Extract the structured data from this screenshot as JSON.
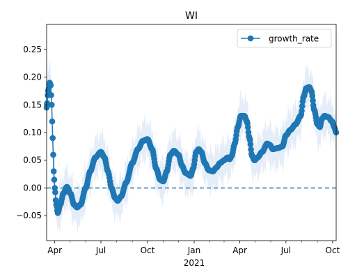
{
  "chart_data": {
    "type": "line",
    "title": "WI",
    "xlabel": "",
    "ylabel": "",
    "x_range": [
      "2020-03-16",
      "2021-10-08"
    ],
    "ylim": [
      -0.095,
      0.295
    ],
    "y_ticks": [
      -0.05,
      0.0,
      0.05,
      0.1,
      0.15,
      0.2,
      0.25
    ],
    "y_tick_labels": [
      "−0.05",
      "0.00",
      "0.05",
      "0.10",
      "0.15",
      "0.20",
      "0.25"
    ],
    "x_ticks": [
      {
        "date": "2020-04-01",
        "label": "Apr"
      },
      {
        "date": "2020-07-01",
        "label": "Jul"
      },
      {
        "date": "2020-10-01",
        "label": "Oct"
      },
      {
        "date": "2021-01-01",
        "label": "Jan"
      },
      {
        "date": "2021-04-01",
        "label": "Apr"
      },
      {
        "date": "2021-07-01",
        "label": "Jul"
      },
      {
        "date": "2021-10-01",
        "label": "Oct"
      }
    ],
    "x_minor_ticks": [
      "2020-05-01",
      "2020-06-01",
      "2020-08-01",
      "2020-09-01",
      "2020-11-01",
      "2020-12-01",
      "2021-02-01",
      "2021-03-01",
      "2021-05-01",
      "2021-06-01",
      "2021-08-01",
      "2021-09-01"
    ],
    "x_secondary_label": "2021",
    "reference_line": {
      "y": 0.0,
      "style": "dashed"
    },
    "legend": {
      "entries": [
        "growth_rate"
      ],
      "position": "top-right"
    },
    "grid": false,
    "colors": {
      "series": "#1f77b4",
      "band": "#dce8f5"
    },
    "series": [
      {
        "name": "growth_rate",
        "band_width": 0.045,
        "keypoints": [
          [
            "2020-03-16",
            0.145
          ],
          [
            "2020-03-19",
            0.175
          ],
          [
            "2020-03-22",
            0.19
          ],
          [
            "2020-03-24",
            0.185
          ],
          [
            "2020-03-26",
            0.15
          ],
          [
            "2020-03-28",
            0.09
          ],
          [
            "2020-03-30",
            0.03
          ],
          [
            "2020-04-01",
            0.0
          ],
          [
            "2020-04-04",
            -0.03
          ],
          [
            "2020-04-07",
            -0.045
          ],
          [
            "2020-04-12",
            -0.03
          ],
          [
            "2020-04-18",
            -0.01
          ],
          [
            "2020-04-25",
            0.002
          ],
          [
            "2020-05-02",
            -0.01
          ],
          [
            "2020-05-09",
            -0.03
          ],
          [
            "2020-05-15",
            -0.035
          ],
          [
            "2020-05-22",
            -0.03
          ],
          [
            "2020-06-01",
            0.0
          ],
          [
            "2020-06-10",
            0.03
          ],
          [
            "2020-06-20",
            0.055
          ],
          [
            "2020-07-01",
            0.065
          ],
          [
            "2020-07-08",
            0.055
          ],
          [
            "2020-07-15",
            0.03
          ],
          [
            "2020-07-22",
            0.0
          ],
          [
            "2020-07-29",
            -0.018
          ],
          [
            "2020-08-03",
            -0.023
          ],
          [
            "2020-08-10",
            -0.015
          ],
          [
            "2020-08-20",
            0.01
          ],
          [
            "2020-09-01",
            0.045
          ],
          [
            "2020-09-12",
            0.07
          ],
          [
            "2020-09-22",
            0.085
          ],
          [
            "2020-10-01",
            0.088
          ],
          [
            "2020-10-10",
            0.07
          ],
          [
            "2020-10-18",
            0.035
          ],
          [
            "2020-10-26",
            0.015
          ],
          [
            "2020-11-01",
            0.012
          ],
          [
            "2020-11-08",
            0.03
          ],
          [
            "2020-11-15",
            0.06
          ],
          [
            "2020-11-22",
            0.067
          ],
          [
            "2020-12-01",
            0.06
          ],
          [
            "2020-12-08",
            0.04
          ],
          [
            "2020-12-15",
            0.027
          ],
          [
            "2020-12-25",
            0.022
          ],
          [
            "2020-12-30",
            0.035
          ],
          [
            "2021-01-05",
            0.065
          ],
          [
            "2021-01-10",
            0.07
          ],
          [
            "2021-01-15",
            0.065
          ],
          [
            "2021-01-22",
            0.045
          ],
          [
            "2021-01-30",
            0.032
          ],
          [
            "2021-02-07",
            0.03
          ],
          [
            "2021-02-14",
            0.037
          ],
          [
            "2021-02-21",
            0.045
          ],
          [
            "2021-03-01",
            0.05
          ],
          [
            "2021-03-08",
            0.055
          ],
          [
            "2021-03-12",
            0.052
          ],
          [
            "2021-03-16",
            0.058
          ],
          [
            "2021-03-22",
            0.08
          ],
          [
            "2021-03-28",
            0.11
          ],
          [
            "2021-04-03",
            0.13
          ],
          [
            "2021-04-10",
            0.13
          ],
          [
            "2021-04-15",
            0.12
          ],
          [
            "2021-04-20",
            0.09
          ],
          [
            "2021-04-25",
            0.058
          ],
          [
            "2021-04-30",
            0.05
          ],
          [
            "2021-05-06",
            0.055
          ],
          [
            "2021-05-15",
            0.065
          ],
          [
            "2021-05-25",
            0.08
          ],
          [
            "2021-05-30",
            0.078
          ],
          [
            "2021-06-05",
            0.07
          ],
          [
            "2021-06-15",
            0.072
          ],
          [
            "2021-06-24",
            0.075
          ],
          [
            "2021-07-01",
            0.095
          ],
          [
            "2021-07-10",
            0.105
          ],
          [
            "2021-07-20",
            0.115
          ],
          [
            "2021-07-30",
            0.13
          ],
          [
            "2021-08-05",
            0.165
          ],
          [
            "2021-08-10",
            0.18
          ],
          [
            "2021-08-16",
            0.182
          ],
          [
            "2021-08-20",
            0.175
          ],
          [
            "2021-08-26",
            0.14
          ],
          [
            "2021-09-01",
            0.115
          ],
          [
            "2021-09-06",
            0.11
          ],
          [
            "2021-09-10",
            0.125
          ],
          [
            "2021-09-15",
            0.13
          ],
          [
            "2021-09-22",
            0.128
          ],
          [
            "2021-09-30",
            0.12
          ],
          [
            "2021-10-04",
            0.11
          ],
          [
            "2021-10-08",
            0.1
          ]
        ]
      }
    ]
  }
}
